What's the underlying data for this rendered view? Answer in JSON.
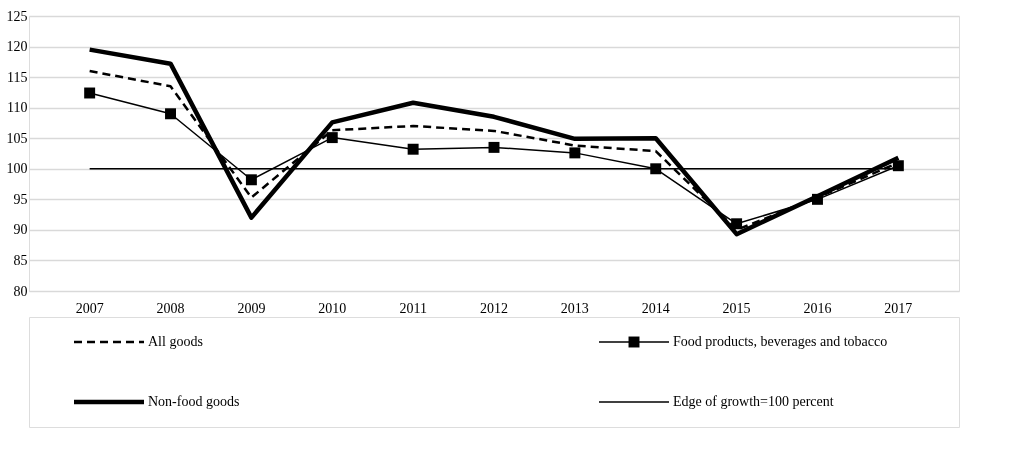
{
  "chart_data": {
    "type": "line",
    "categories": [
      "2007",
      "2008",
      "2009",
      "2010",
      "2011",
      "2012",
      "2013",
      "2014",
      "2015",
      "2016",
      "2017"
    ],
    "series": [
      {
        "name": "All goods",
        "color": "#000000",
        "line_style": "dashed",
        "marker": "none",
        "values": [
          116.0,
          113.5,
          95.3,
          106.3,
          107.0,
          106.2,
          103.8,
          102.9,
          90.0,
          95.3,
          101.0
        ]
      },
      {
        "name": "Food products, beverages and tobacco",
        "color": "#000000",
        "line_style": "solid",
        "marker": "square",
        "values": [
          112.4,
          109.0,
          98.2,
          105.1,
          103.2,
          103.5,
          102.6,
          100.0,
          91.0,
          95.0,
          100.5
        ]
      },
      {
        "name": "Non-food goods",
        "color": "#000000",
        "line_style": "solid",
        "marker": "none",
        "values": [
          119.5,
          117.2,
          92.0,
          107.6,
          110.8,
          108.5,
          104.9,
          105.0,
          89.3,
          95.5,
          101.8
        ]
      }
    ],
    "ref_lines": [
      {
        "axis": "y",
        "value": 100,
        "label": "Edge of growth=100 percent",
        "color": "#000000",
        "line_style": "solid"
      }
    ],
    "ylim": [
      80,
      125
    ],
    "yticks": [
      80,
      85,
      90,
      95,
      100,
      105,
      110,
      115,
      120,
      125
    ],
    "grid": "y",
    "legend": "bottom"
  }
}
